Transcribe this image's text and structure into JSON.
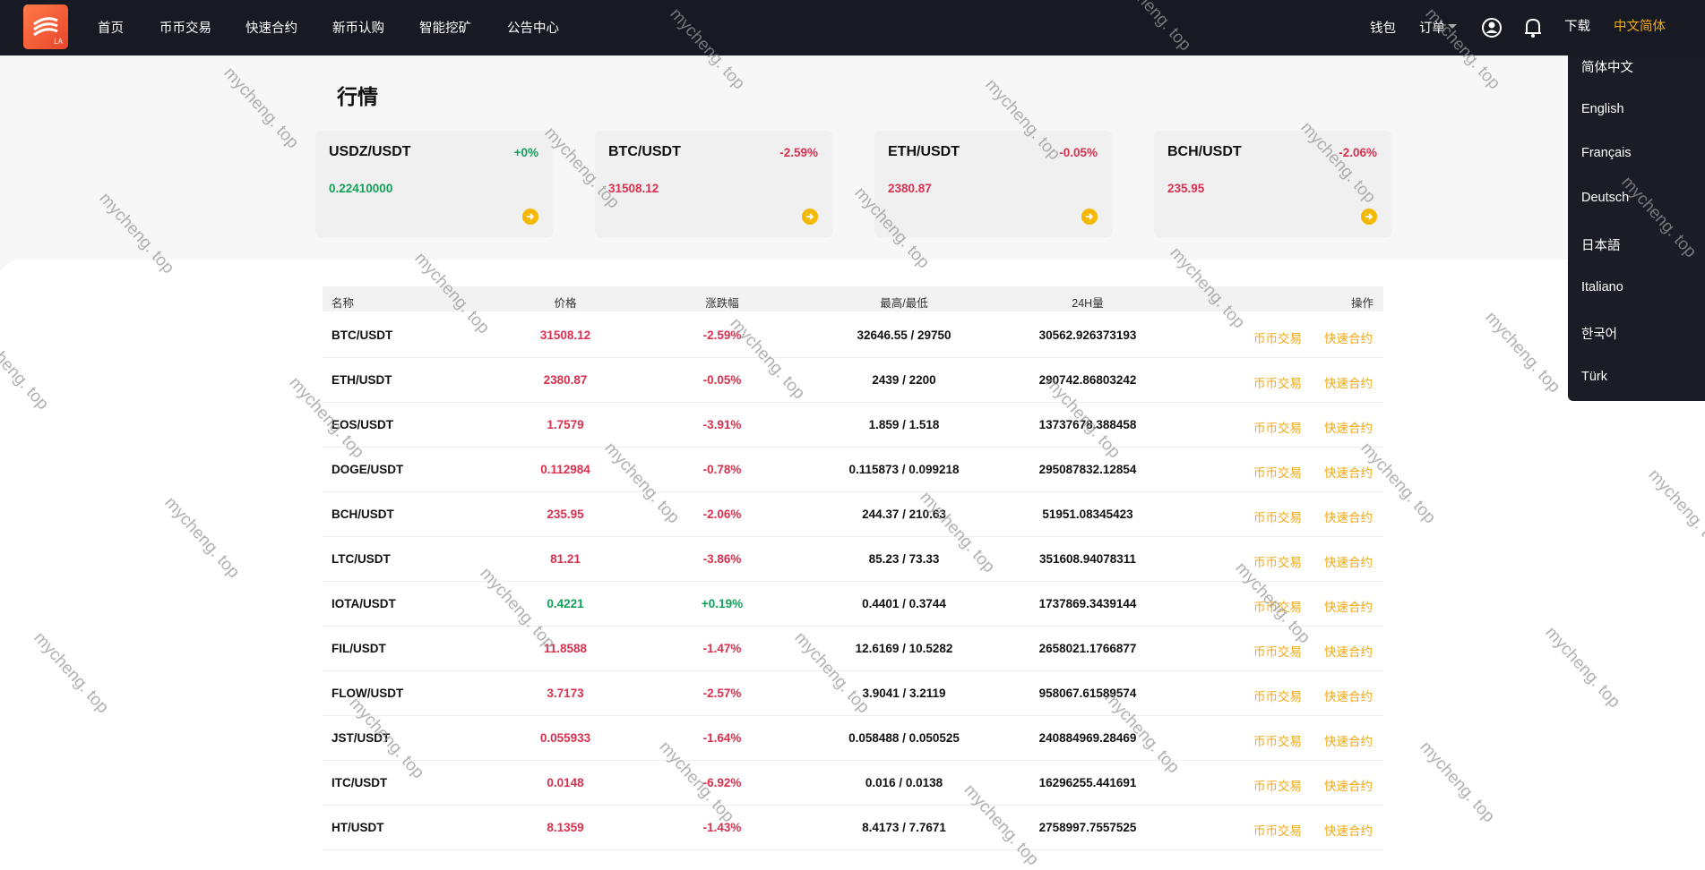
{
  "header": {
    "logo_text": "LA",
    "nav": [
      "首页",
      "币币交易",
      "快速合约",
      "新币认购",
      "智能挖矿",
      "公告中心"
    ],
    "right": {
      "wallet": "钱包",
      "orders": "订单",
      "download": "下载",
      "language": "中文简体"
    }
  },
  "language_menu": [
    "简体中文",
    "English",
    "Français",
    "Deutsch",
    "日本語",
    "Italiano",
    "한국어",
    "Türk"
  ],
  "page_title": "行情",
  "cards": [
    {
      "pair": "USDZ/USDT",
      "change": "+0%",
      "price": "0.22410000"
    },
    {
      "pair": "BTC/USDT",
      "change": "-2.59%",
      "price": "31508.12"
    },
    {
      "pair": "ETH/USDT",
      "change": "-0.05%",
      "price": "2380.87"
    },
    {
      "pair": "BCH/USDT",
      "change": "-2.06%",
      "price": "235.95"
    }
  ],
  "table": {
    "columns": [
      "名称",
      "价格",
      "涨跌幅",
      "最高/最低",
      "24H量",
      "操作"
    ],
    "actions": [
      "币币交易",
      "快速合约"
    ],
    "rows": [
      [
        "BTC/USDT",
        "31508.12",
        "-2.59%",
        "32646.55 / 29750",
        "30562.926373193"
      ],
      [
        "ETH/USDT",
        "2380.87",
        "-0.05%",
        "2439 / 2200",
        "290742.86803242"
      ],
      [
        "EOS/USDT",
        "1.7579",
        "-3.91%",
        "1.859 / 1.518",
        "13737678.388458"
      ],
      [
        "DOGE/USDT",
        "0.112984",
        "-0.78%",
        "0.115873 / 0.099218",
        "295087832.12854"
      ],
      [
        "BCH/USDT",
        "235.95",
        "-2.06%",
        "244.37 / 210.63",
        "51951.08345423"
      ],
      [
        "LTC/USDT",
        "81.21",
        "-3.86%",
        "85.23 / 73.33",
        "351608.94078311"
      ],
      [
        "IOTA/USDT",
        "0.4221",
        "+0.19%",
        "0.4401 / 0.3744",
        "1737869.3439144"
      ],
      [
        "FIL/USDT",
        "11.8588",
        "-1.47%",
        "12.6169 / 10.5282",
        "2658021.1766877"
      ],
      [
        "FLOW/USDT",
        "3.7173",
        "-2.57%",
        "3.9041 / 3.2119",
        "958067.61589574"
      ],
      [
        "JST/USDT",
        "0.055933",
        "-1.64%",
        "0.058488 / 0.050525",
        "240884969.28469"
      ],
      [
        "ITC/USDT",
        "0.0148",
        "-6.92%",
        "0.016 / 0.0138",
        "16296255.441691"
      ],
      [
        "HT/USDT",
        "8.1359",
        "-1.43%",
        "8.4173 / 7.7671",
        "2758997.7557525"
      ]
    ]
  },
  "watermark": "mycheng. top"
}
